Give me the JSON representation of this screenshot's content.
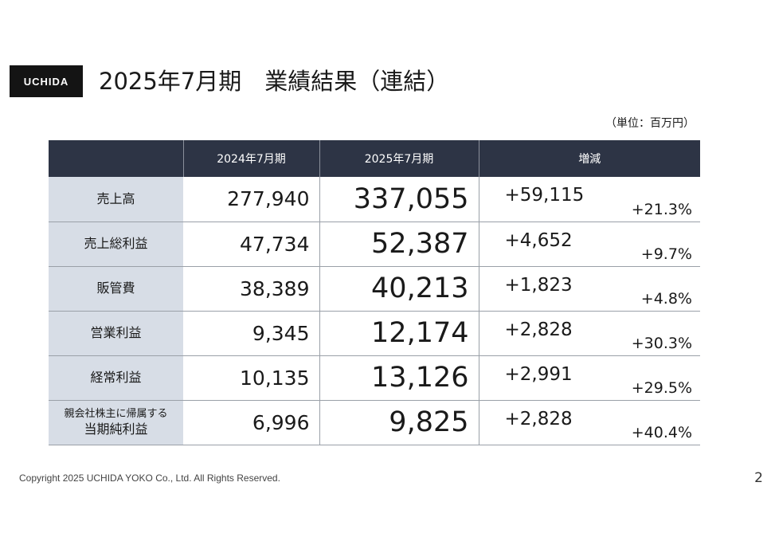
{
  "header": {
    "logo_text": "UCHIDA",
    "title": "2025年7月期　業績結果（連結）",
    "unit": "（単位：百万円）"
  },
  "table": {
    "columns": [
      "",
      "2024年7月期",
      "2025年7月期",
      "増減"
    ],
    "rows": [
      {
        "label": "売上高",
        "label_small": "",
        "prev": "277,940",
        "curr": "337,055",
        "diff": "+59,115",
        "pct": "+21.3%"
      },
      {
        "label": "売上総利益",
        "label_small": "",
        "prev": "47,734",
        "curr": "52,387",
        "diff": "+4,652",
        "pct": "+9.7%"
      },
      {
        "label": "販管費",
        "label_small": "",
        "prev": "38,389",
        "curr": "40,213",
        "diff": "+1,823",
        "pct": "+4.8%"
      },
      {
        "label": "営業利益",
        "label_small": "",
        "prev": "9,345",
        "curr": "12,174",
        "diff": "+2,828",
        "pct": "+30.3%"
      },
      {
        "label": "経常利益",
        "label_small": "",
        "prev": "10,135",
        "curr": "13,126",
        "diff": "+2,991",
        "pct": "+29.5%"
      },
      {
        "label": "当期純利益",
        "label_small": "親会社株主に帰属する",
        "prev": "6,996",
        "curr": "9,825",
        "diff": "+2,828",
        "pct": "+40.4%"
      }
    ]
  },
  "footer": {
    "copyright": "Copyright 2025 UCHIDA YOKO Co., Ltd. All Rights Reserved.",
    "page_number": "2"
  },
  "colors": {
    "header_bg": "#2d3445",
    "label_bg": "#d7dde6",
    "logo_bg": "#141414"
  }
}
